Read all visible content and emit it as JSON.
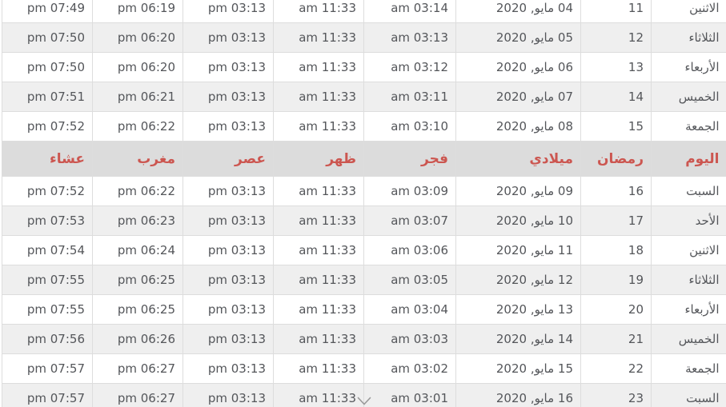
{
  "table": {
    "columns": [
      {
        "key": "day",
        "label": "اليوم"
      },
      {
        "key": "ramadan",
        "label": "رمضان"
      },
      {
        "key": "date",
        "label": "ميلادي"
      },
      {
        "key": "fajr",
        "label": "فجر"
      },
      {
        "key": "dhuhr",
        "label": "ظهر"
      },
      {
        "key": "asr",
        "label": "عصر"
      },
      {
        "key": "maghrib",
        "label": "مغرب"
      },
      {
        "key": "isha",
        "label": "عشاء"
      }
    ],
    "rows_above_header": [
      {
        "day": "الاثنين",
        "ramadan": "11",
        "date": "04 مايو, 2020",
        "fajr": "am 03:14",
        "dhuhr": "am 11:33",
        "asr": "pm 03:13",
        "maghrib": "pm 06:19",
        "isha": "pm 07:49"
      },
      {
        "day": "الثلاثاء",
        "ramadan": "12",
        "date": "05 مايو, 2020",
        "fajr": "am 03:13",
        "dhuhr": "am 11:33",
        "asr": "pm 03:13",
        "maghrib": "pm 06:20",
        "isha": "pm 07:50"
      },
      {
        "day": "الأربعاء",
        "ramadan": "13",
        "date": "06 مايو, 2020",
        "fajr": "am 03:12",
        "dhuhr": "am 11:33",
        "asr": "pm 03:13",
        "maghrib": "pm 06:20",
        "isha": "pm 07:50"
      },
      {
        "day": "الخميس",
        "ramadan": "14",
        "date": "07 مايو, 2020",
        "fajr": "am 03:11",
        "dhuhr": "am 11:33",
        "asr": "pm 03:13",
        "maghrib": "pm 06:21",
        "isha": "pm 07:51"
      },
      {
        "day": "الجمعة",
        "ramadan": "15",
        "date": "08 مايو, 2020",
        "fajr": "am 03:10",
        "dhuhr": "am 11:33",
        "asr": "pm 03:13",
        "maghrib": "pm 06:22",
        "isha": "pm 07:52"
      }
    ],
    "rows_below_header": [
      {
        "day": "السبت",
        "ramadan": "16",
        "date": "09 مايو, 2020",
        "fajr": "am 03:09",
        "dhuhr": "am 11:33",
        "asr": "pm 03:13",
        "maghrib": "pm 06:22",
        "isha": "pm 07:52"
      },
      {
        "day": "الأحد",
        "ramadan": "17",
        "date": "10 مايو, 2020",
        "fajr": "am 03:07",
        "dhuhr": "am 11:33",
        "asr": "pm 03:13",
        "maghrib": "pm 06:23",
        "isha": "pm 07:53"
      },
      {
        "day": "الاثنين",
        "ramadan": "18",
        "date": "11 مايو, 2020",
        "fajr": "am 03:06",
        "dhuhr": "am 11:33",
        "asr": "pm 03:13",
        "maghrib": "pm 06:24",
        "isha": "pm 07:54"
      },
      {
        "day": "الثلاثاء",
        "ramadan": "19",
        "date": "12 مايو, 2020",
        "fajr": "am 03:05",
        "dhuhr": "am 11:33",
        "asr": "pm 03:13",
        "maghrib": "pm 06:25",
        "isha": "pm 07:55"
      },
      {
        "day": "الأربعاء",
        "ramadan": "20",
        "date": "13 مايو, 2020",
        "fajr": "am 03:04",
        "dhuhr": "am 11:33",
        "asr": "pm 03:13",
        "maghrib": "pm 06:25",
        "isha": "pm 07:55"
      },
      {
        "day": "الخميس",
        "ramadan": "21",
        "date": "14 مايو, 2020",
        "fajr": "am 03:03",
        "dhuhr": "am 11:33",
        "asr": "pm 03:13",
        "maghrib": "pm 06:26",
        "isha": "pm 07:56"
      },
      {
        "day": "الجمعة",
        "ramadan": "22",
        "date": "15 مايو, 2020",
        "fajr": "am 03:02",
        "dhuhr": "am 11:33",
        "asr": "pm 03:13",
        "maghrib": "pm 06:27",
        "isha": "pm 07:57"
      },
      {
        "day": "السبت",
        "ramadan": "23",
        "date": "16 مايو, 2020",
        "fajr": "am 03:01",
        "dhuhr": "am 11:33",
        "asr": "pm 03:13",
        "maghrib": "pm 06:27",
        "isha": "pm 07:57"
      }
    ]
  },
  "icons": {
    "scroll_down_indicator": "chevron-down"
  },
  "colors": {
    "header_text": "#cc5650",
    "header_background": "#dcdcdc",
    "row_stripe": "#efefef",
    "cell_text": "#54565a",
    "border": "#dddddd",
    "chevron": "#999999"
  }
}
